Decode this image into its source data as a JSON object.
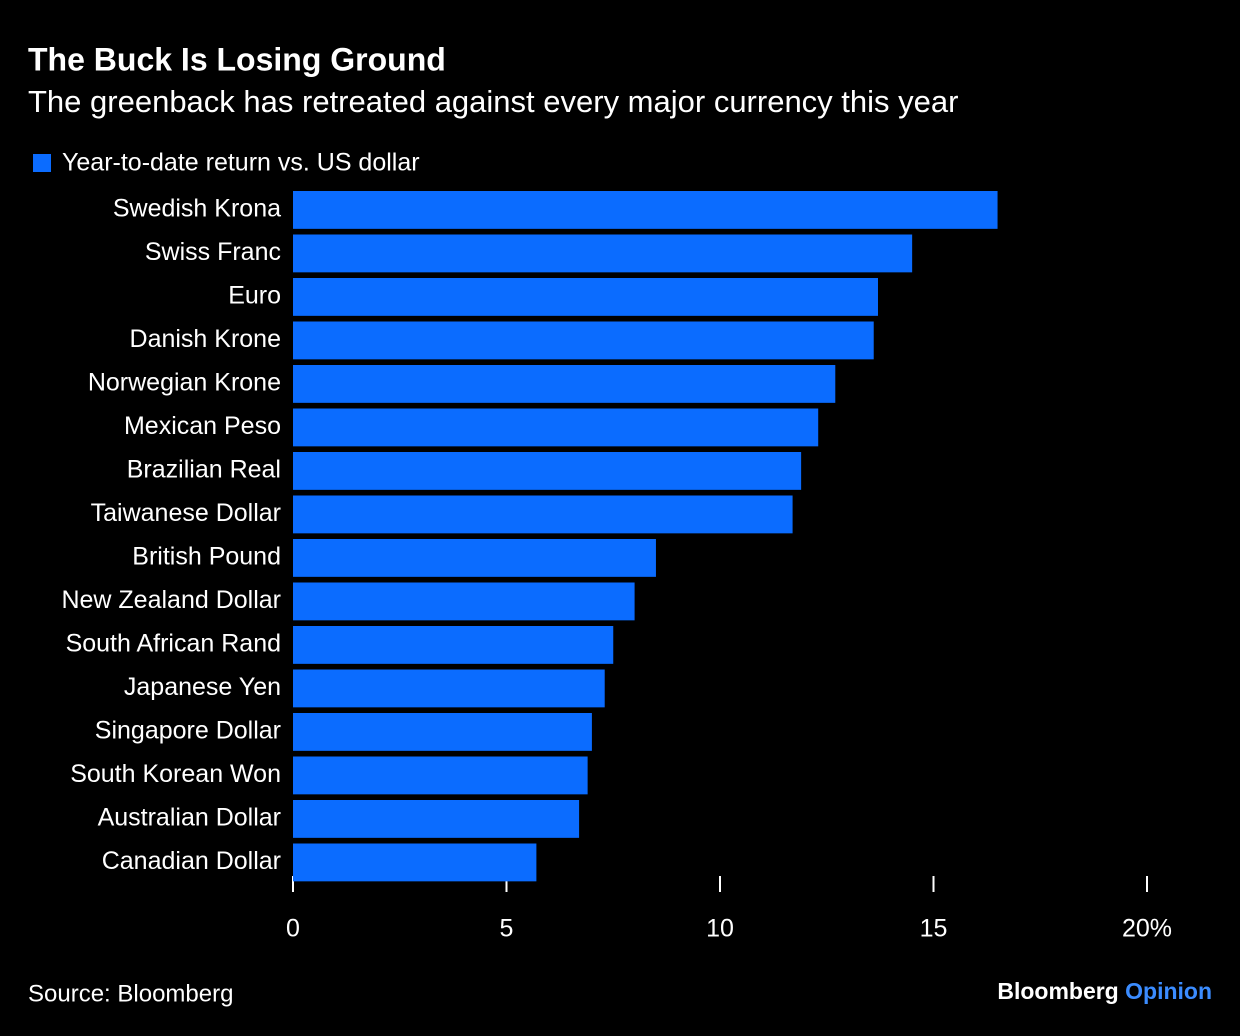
{
  "chart_data": {
    "type": "hbar",
    "title": "The Buck Is Losing Ground",
    "subtitle": "The greenback has retreated against every major currency this year",
    "categories": [
      "Swedish Krona",
      "Swiss Franc",
      "Euro",
      "Danish Krone",
      "Norwegian Krone",
      "Mexican Peso",
      "Brazilian Real",
      "Taiwanese Dollar",
      "British Pound",
      "New Zealand Dollar",
      "South African Rand",
      "Japanese Yen",
      "Singapore Dollar",
      "South Korean Won",
      "Australian Dollar",
      "Canadian Dollar"
    ],
    "series": [
      {
        "name": "Year-to-date return vs. US dollar",
        "color": "#0b6cff",
        "values": [
          16.5,
          14.5,
          13.7,
          13.6,
          12.7,
          12.3,
          11.9,
          11.7,
          8.5,
          8.0,
          7.5,
          7.3,
          7.0,
          6.9,
          6.7,
          5.7
        ]
      }
    ],
    "xlim": [
      0,
      20
    ],
    "xticks": [
      0,
      5,
      10,
      15,
      {
        "value": 20,
        "label": "20%"
      }
    ],
    "source": "Source: Bloomberg"
  },
  "branding": {
    "name": "Bloomberg",
    "product": "Opinion"
  }
}
